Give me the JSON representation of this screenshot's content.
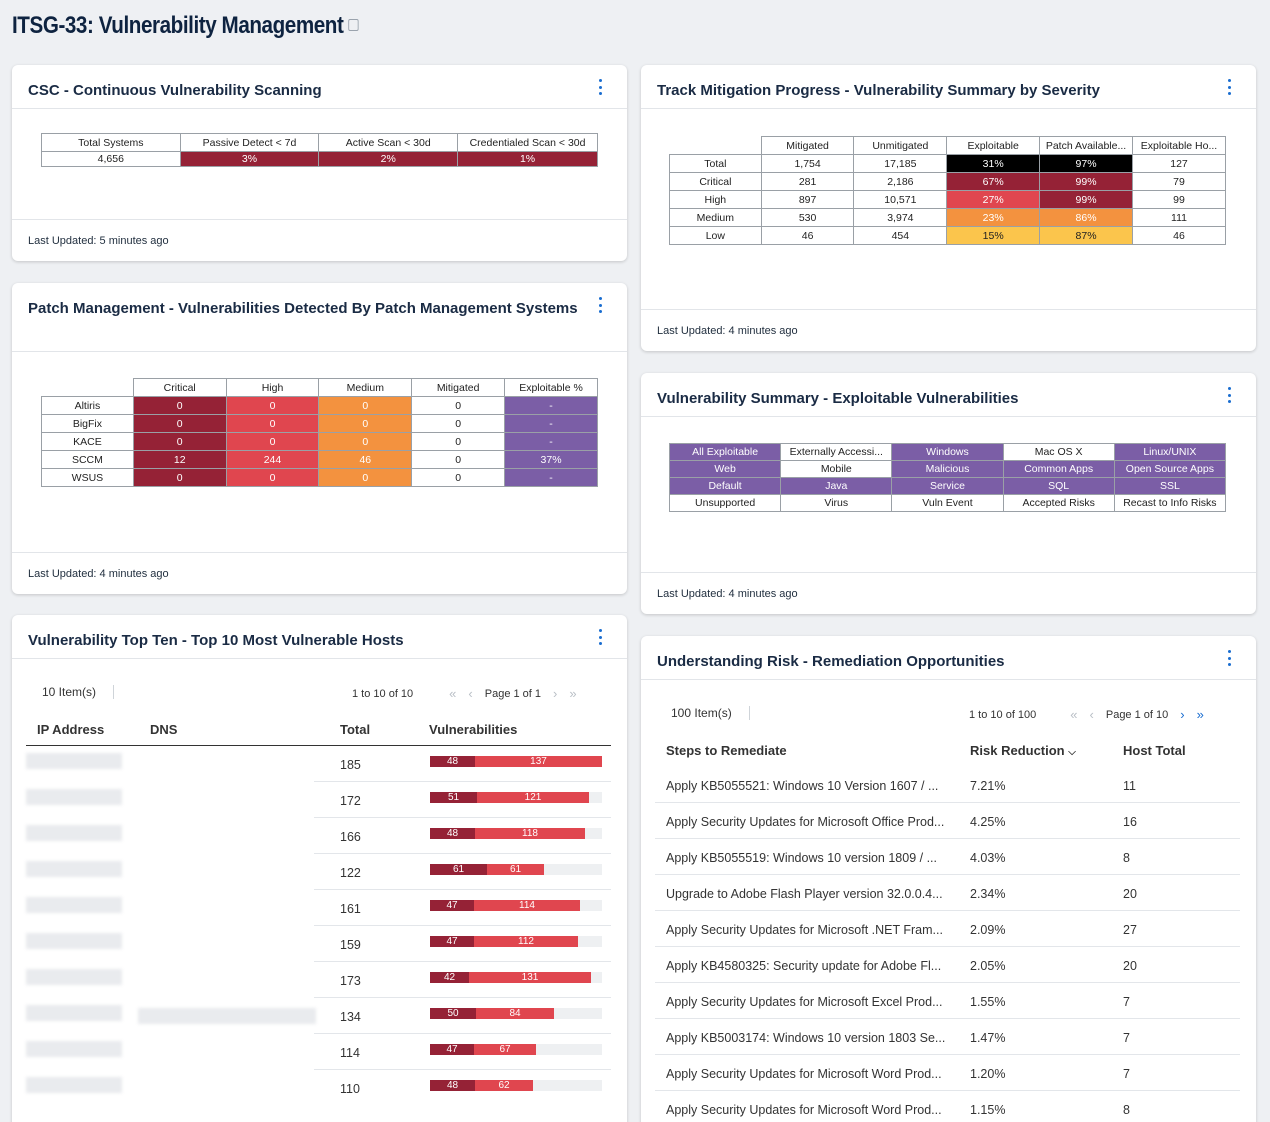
{
  "page": {
    "title": "ITSG-33: Vulnerability Management"
  },
  "colors": {
    "dark_red": "#952236",
    "red": "#e0464f",
    "orange": "#f3923f",
    "yellow": "#fbc54c",
    "purple": "#7b5ea6",
    "link_blue": "#1a6dd0"
  },
  "csc": {
    "title": "CSC - Continuous Vulnerability Scanning",
    "headers": [
      "Total Systems",
      "Passive Detect < 7d",
      "Active Scan < 30d",
      "Credentialed Scan < 30d"
    ],
    "values": [
      "4,656",
      "3%",
      "2%",
      "1%"
    ],
    "footer": "Last Updated: 5 minutes ago"
  },
  "track": {
    "title": "Track Mitigation Progress - Vulnerability Summary by Severity",
    "headers": [
      "Mitigated",
      "Unmitigated",
      "Exploitable",
      "Patch Available...",
      "Exploitable Ho..."
    ],
    "rows": [
      {
        "label": "Total",
        "cells": [
          "1,754",
          "17,185",
          "31%",
          "97%",
          "127"
        ]
      },
      {
        "label": "Critical",
        "cells": [
          "281",
          "2,186",
          "67%",
          "99%",
          "79"
        ]
      },
      {
        "label": "High",
        "cells": [
          "897",
          "10,571",
          "27%",
          "99%",
          "99"
        ]
      },
      {
        "label": "Medium",
        "cells": [
          "530",
          "3,974",
          "23%",
          "86%",
          "111"
        ]
      },
      {
        "label": "Low",
        "cells": [
          "46",
          "454",
          "15%",
          "87%",
          "46"
        ]
      }
    ],
    "footer": "Last Updated: 4 minutes ago"
  },
  "patch": {
    "title": "Patch Management - Vulnerabilities Detected By Patch Management Systems",
    "headers": [
      "Critical",
      "High",
      "Medium",
      "Mitigated",
      "Exploitable %"
    ],
    "rows": [
      {
        "label": "Altiris",
        "cells": [
          "0",
          "0",
          "0",
          "0",
          "-"
        ]
      },
      {
        "label": "BigFix",
        "cells": [
          "0",
          "0",
          "0",
          "0",
          "-"
        ]
      },
      {
        "label": "KACE",
        "cells": [
          "0",
          "0",
          "0",
          "0",
          "-"
        ]
      },
      {
        "label": "SCCM",
        "cells": [
          "12",
          "244",
          "46",
          "0",
          "37%"
        ]
      },
      {
        "label": "WSUS",
        "cells": [
          "0",
          "0",
          "0",
          "0",
          "-"
        ]
      }
    ],
    "footer": "Last Updated: 4 minutes ago"
  },
  "exploit": {
    "title": "Vulnerability Summary - Exploitable Vulnerabilities",
    "rows": [
      [
        "All Exploitable",
        "Externally Accessi...",
        "Windows",
        "Mac OS X",
        "Linux/UNIX"
      ],
      [
        "Web",
        "Mobile",
        "Malicious",
        "Common Apps",
        "Open Source Apps"
      ],
      [
        "Default",
        "Java",
        "Service",
        "SQL",
        "SSL"
      ],
      [
        "Unsupported",
        "Virus",
        "Vuln Event",
        "Accepted Risks",
        "Recast to Info Risks"
      ]
    ],
    "footer": "Last Updated: 4 minutes ago"
  },
  "topten": {
    "title": "Vulnerability Top Ten - Top 10 Most Vulnerable Hosts",
    "items": "10 Item(s)",
    "range": "1 to 10 of 10",
    "page": "Page 1 of 1",
    "columns": [
      "IP Address",
      "DNS",
      "Total",
      "Vulnerabilities"
    ],
    "rows": [
      {
        "total": "185",
        "crit": 48,
        "high": 137
      },
      {
        "total": "172",
        "crit": 51,
        "high": 121
      },
      {
        "total": "166",
        "crit": 48,
        "high": 118
      },
      {
        "total": "122",
        "crit": 61,
        "high": 61
      },
      {
        "total": "161",
        "crit": 47,
        "high": 114
      },
      {
        "total": "159",
        "crit": 47,
        "high": 112
      },
      {
        "total": "173",
        "crit": 42,
        "high": 131
      },
      {
        "total": "134",
        "crit": 50,
        "high": 84
      },
      {
        "total": "114",
        "crit": 47,
        "high": 67
      },
      {
        "total": "110",
        "crit": 48,
        "high": 62
      }
    ],
    "max_total": 185
  },
  "risk": {
    "title": "Understanding Risk - Remediation Opportunities",
    "items": "100 Item(s)",
    "range": "1 to 10 of 100",
    "page": "Page 1 of 10",
    "columns": [
      "Steps to Remediate",
      "Risk Reduction",
      "Host Total"
    ],
    "rows": [
      {
        "step": "Apply KB5055521: Windows 10 Version 1607 / ...",
        "risk": "7.21%",
        "hosts": "11"
      },
      {
        "step": "Apply Security Updates for Microsoft Office Prod...",
        "risk": "4.25%",
        "hosts": "16"
      },
      {
        "step": "Apply KB5055519: Windows 10 version 1809 / ...",
        "risk": "4.03%",
        "hosts": "8"
      },
      {
        "step": "Upgrade to Adobe Flash Player version 32.0.0.4...",
        "risk": "2.34%",
        "hosts": "20"
      },
      {
        "step": "Apply Security Updates for Microsoft .NET Fram...",
        "risk": "2.09%",
        "hosts": "27"
      },
      {
        "step": "Apply KB4580325: Security update for Adobe Fl...",
        "risk": "2.05%",
        "hosts": "20"
      },
      {
        "step": "Apply Security Updates for Microsoft Excel Prod...",
        "risk": "1.55%",
        "hosts": "7"
      },
      {
        "step": "Apply KB5003174: Windows 10 version 1803 Se...",
        "risk": "1.47%",
        "hosts": "7"
      },
      {
        "step": "Apply Security Updates for Microsoft Word Prod...",
        "risk": "1.20%",
        "hosts": "7"
      },
      {
        "step": "Apply Security Updates for Microsoft Word Prod...",
        "risk": "1.15%",
        "hosts": "8"
      }
    ]
  }
}
